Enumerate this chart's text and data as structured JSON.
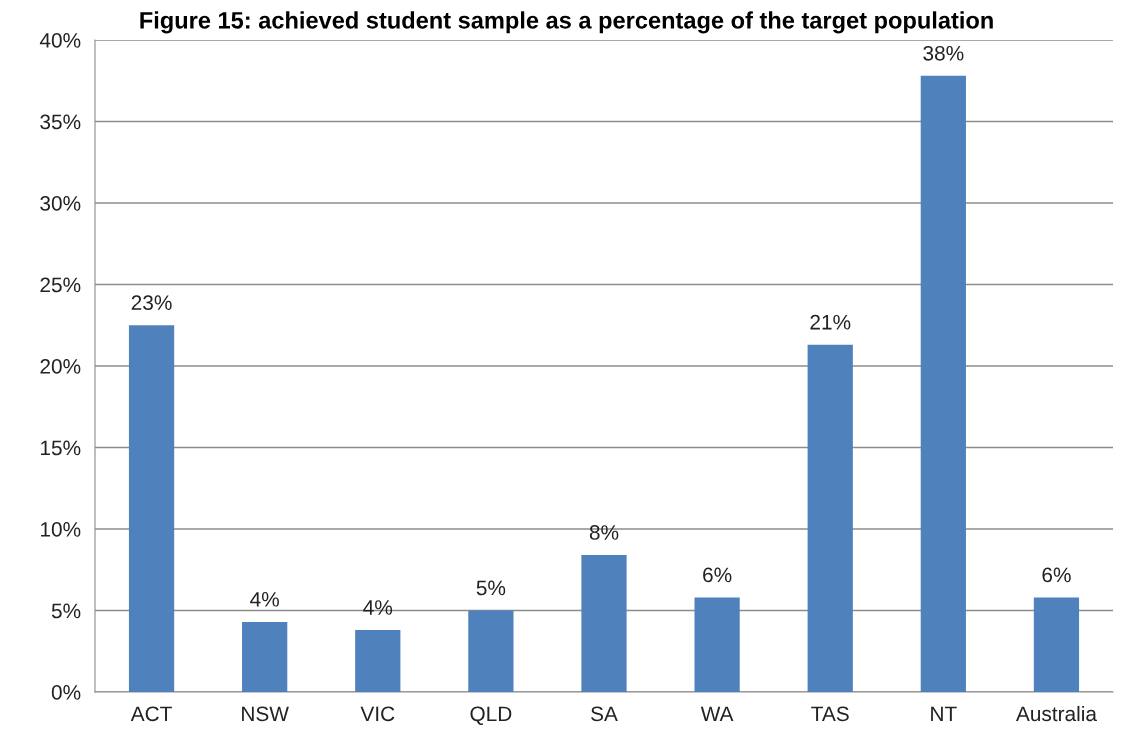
{
  "chart_data": {
    "type": "bar",
    "title": "Figure 15: achieved student sample as a percentage of the target population",
    "categories": [
      "ACT",
      "NSW",
      "VIC",
      "QLD",
      "SA",
      "WA",
      "TAS",
      "NT",
      "Australia"
    ],
    "values": [
      22.5,
      4.3,
      3.8,
      5.0,
      8.4,
      5.8,
      21.3,
      37.8,
      5.8
    ],
    "value_labels": [
      "23%",
      "4%",
      "4%",
      "5%",
      "8%",
      "6%",
      "21%",
      "38%",
      "6%"
    ],
    "color": "#4f81bd",
    "ylim": [
      0,
      40
    ],
    "yticks": [
      {
        "value": 0,
        "label": "0%"
      },
      {
        "value": 5,
        "label": "5%"
      },
      {
        "value": 10,
        "label": "10%"
      },
      {
        "value": 15,
        "label": "15%"
      },
      {
        "value": 20,
        "label": "20%"
      },
      {
        "value": 25,
        "label": "25%"
      },
      {
        "value": 30,
        "label": "30%"
      },
      {
        "value": 35,
        "label": "35%"
      },
      {
        "value": 40,
        "label": "40%"
      }
    ],
    "grid": "y",
    "legend": false
  }
}
